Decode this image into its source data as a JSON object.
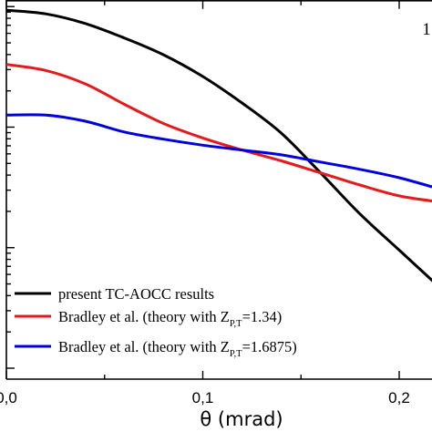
{
  "chart_data": {
    "type": "line",
    "xlabel": "θ (mrad)",
    "ylabel": "",
    "x_ticks": [
      "0,0",
      "0,1",
      "0,2"
    ],
    "xlim": [
      0,
      0.22
    ],
    "y_scale": "log",
    "ylim_decades": [
      -1.0,
      2.1
    ],
    "panel_label": "1",
    "legend": {
      "placement": "bottom-left",
      "entries": [
        {
          "series": 0,
          "text": "present TC-AOCC results",
          "sub": "",
          "tail": ""
        },
        {
          "series": 1,
          "text": "Bradley et al. (theory with Z",
          "sub": "P,T",
          "tail": "=1.34)"
        },
        {
          "series": 2,
          "text": "Bradley et al. (theory with Z",
          "sub": "P,T",
          "tail": "=1.6875)"
        }
      ]
    },
    "series": [
      {
        "color": "#000000",
        "x": [
          0,
          0.02,
          0.04,
          0.06,
          0.08,
          0.1,
          0.12,
          0.14,
          0.16,
          0.18,
          0.2,
          0.22
        ],
        "log10_y": [
          1.97,
          1.94,
          1.86,
          1.74,
          1.6,
          1.42,
          1.2,
          0.95,
          0.62,
          0.28,
          -0.02,
          -0.32
        ]
      },
      {
        "color": "#e41a1c",
        "x": [
          0,
          0.02,
          0.04,
          0.06,
          0.08,
          0.1,
          0.12,
          0.14,
          0.16,
          0.18,
          0.2,
          0.22
        ],
        "log10_y": [
          1.52,
          1.47,
          1.36,
          1.19,
          1.03,
          0.91,
          0.81,
          0.72,
          0.62,
          0.52,
          0.43,
          0.38
        ]
      },
      {
        "color": "#0000dd",
        "x": [
          0,
          0.02,
          0.04,
          0.06,
          0.08,
          0.1,
          0.12,
          0.14,
          0.16,
          0.18,
          0.2,
          0.22
        ],
        "log10_y": [
          1.1,
          1.1,
          1.05,
          0.96,
          0.9,
          0.85,
          0.81,
          0.77,
          0.71,
          0.65,
          0.58,
          0.49
        ]
      }
    ]
  }
}
